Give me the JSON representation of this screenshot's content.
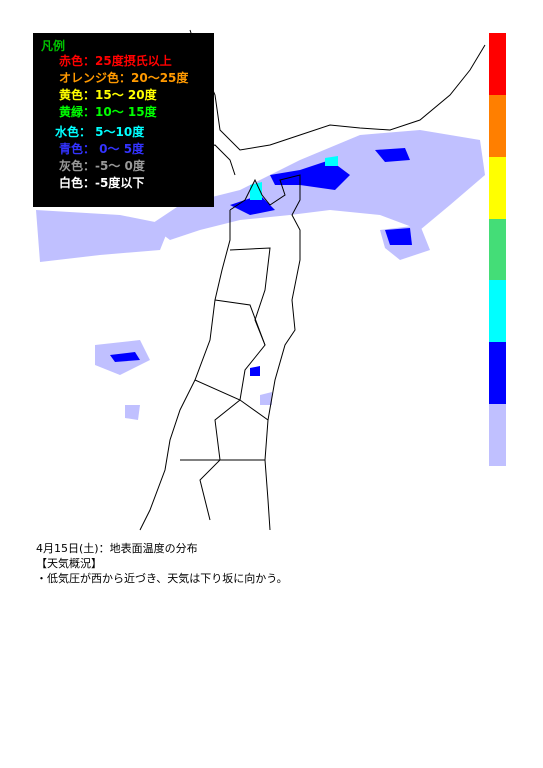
{
  "legend": {
    "title": "凡例",
    "title_color": "#00c000",
    "items": [
      {
        "label": "赤色：25度摂氏以上",
        "text_color": "#ff0000"
      },
      {
        "label": "オレンジ色：20～25度",
        "text_color": "#ff9900"
      },
      {
        "label": "黄色：15～ 20度",
        "text_color": "#ffff00"
      },
      {
        "label": "黄緑：10～ 15度",
        "text_color": "#00ff00"
      },
      {
        "label": "水色： 5～10度",
        "text_color": "#00ffff"
      },
      {
        "label": "青色： 0～ 5度",
        "text_color": "#3333ff"
      },
      {
        "label": "灰色：-5～ 0度",
        "text_color": "#999999"
      },
      {
        "label": "白色：-5度以下",
        "text_color": "#ffffff"
      }
    ]
  },
  "color_bar": [
    "#ff0000",
    "#ff7f00",
    "#ffff00",
    "#44dd77",
    "#00ffff",
    "#0000ff",
    "#c0c0ff"
  ],
  "caption": {
    "heading": "4月15日(土)：地表面温度の分布",
    "section": "【天気概況】",
    "text": "・低気圧が西から近づき、天気は下り坂に向かう。"
  }
}
